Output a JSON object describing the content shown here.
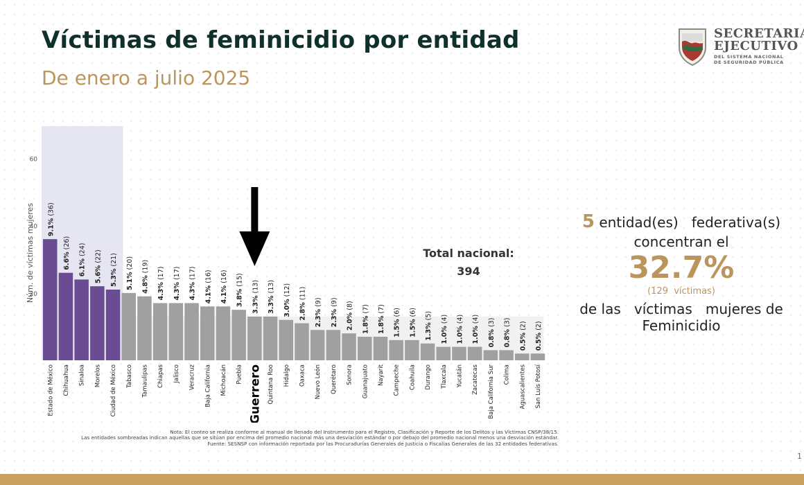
{
  "header": {
    "title": "Víctimas de feminicidio por entidad",
    "subtitle": "De enero a julio 2025"
  },
  "logo": {
    "line1": "SECRETARIA",
    "line2": "EJECUTIVO",
    "line3": "DEL SISTEMA NACIONAL",
    "line4": "DE SEGURIDAD PÚBLICA"
  },
  "colors": {
    "highlight_bar": "#6a4c93",
    "normal_bar": "#a0a0a0",
    "highlight_band": "#e6e6f2",
    "accent": "#bc955c",
    "title": "#10312b"
  },
  "chart_data": {
    "type": "bar",
    "ylabel": "Núm. de víctimas mujeres",
    "ylim": [
      0,
      70
    ],
    "yticks": [
      20,
      40,
      60
    ],
    "grid": false,
    "categories": [
      "Estado de México",
      "Chihuahua",
      "Sinaloa",
      "Morelos",
      "Ciudad de México",
      "Tabasco",
      "Tamaulipas",
      "Chiapas",
      "Jalisco",
      "Veracruz",
      "Baja California",
      "Michoacán",
      "Puebla",
      "Guerrero",
      "Quintana Roo",
      "Hidalgo",
      "Oaxaca",
      "Nuevo León",
      "Querétaro",
      "Sonora",
      "Guanajuato",
      "Nayarit",
      "Campeche",
      "Coahuila",
      "Durango",
      "Tlaxcala",
      "Yucatán",
      "Zacatecas",
      "Baja California Sur",
      "Colima",
      "Aguascalientes",
      "San Luis Potosí"
    ],
    "values": [
      36,
      26,
      24,
      22,
      21,
      20,
      19,
      17,
      17,
      17,
      16,
      16,
      15,
      13,
      13,
      12,
      11,
      9,
      9,
      8,
      7,
      7,
      6,
      6,
      5,
      4,
      4,
      4,
      3,
      3,
      2,
      2
    ],
    "percents": [
      "9.1%",
      "6.6%",
      "6.1%",
      "5.6%",
      "5.3%",
      "5.1%",
      "4.8%",
      "4.3%",
      "4.3%",
      "4.3%",
      "4.1%",
      "4.1%",
      "3.8%",
      "3.3%",
      "3.3%",
      "3.0%",
      "2.8%",
      "2.3%",
      "2.3%",
      "2.0%",
      "1.8%",
      "1.8%",
      "1.5%",
      "1.5%",
      "1.3%",
      "1.0%",
      "1.0%",
      "1.0%",
      "0.8%",
      "0.8%",
      "0.5%",
      "0.5%"
    ],
    "highlighted_count": 5,
    "emphasized_category": "Guerrero"
  },
  "total": {
    "label": "Total nacional:",
    "value": "394"
  },
  "summary": {
    "count": "5",
    "line1": "entidad(es)   federativa(s)",
    "line2": "concentran el",
    "percent": "32.7%",
    "victims": "(129  víctimas)",
    "line3": "de las   víctimas   mujeres de",
    "line4": "Feminicidio"
  },
  "notes": {
    "line1": "Nota: El conteo se realiza conforme al manual de llenado del Instrumento para el Registro, Clasificación y Reporte de los Delitos y las Víctimas CNSP/38/15.",
    "line2": "Las entidades sombreadas indican aquellas que se sitúan por encima del promedio nacional más una desviación estándar o por debajo del promedio nacional menos una desviación estándar.",
    "line3": "Fuente: SESNSP con información reportada por las Procuradurías Generales de Justicia o Fiscalías Generales de las 32 entidades federativas."
  },
  "page_number": "1"
}
